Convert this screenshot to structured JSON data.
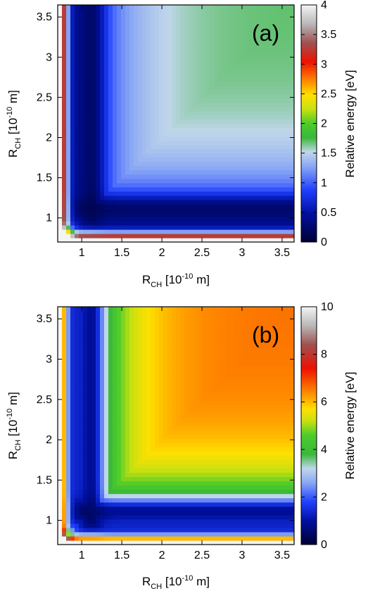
{
  "chart_data": [
    {
      "type": "heatmap",
      "panel_label": "(a)",
      "xlabel": {
        "main": "R",
        "sub": "CH",
        "rest": " [10",
        "sup": "-10",
        "end": " m]"
      },
      "ylabel": {
        "main": "R",
        "sub": "CH",
        "rest": " [10",
        "sup": "-10",
        "end": " m]"
      },
      "xlim": [
        0.7,
        3.65
      ],
      "ylim": [
        0.7,
        3.65
      ],
      "xticks": [
        1,
        1.5,
        2,
        2.5,
        3,
        3.5
      ],
      "xtick_labels": [
        "1",
        "1.5",
        "2",
        "2.5",
        "3",
        "3.5"
      ],
      "yticks": [
        1,
        1.5,
        2,
        2.5,
        3,
        3.5
      ],
      "ytick_labels": [
        "1",
        "1.5",
        "2",
        "2.5",
        "3",
        "3.5"
      ],
      "colorbar": {
        "label": "Relative energy [eV]",
        "range": [
          0,
          4
        ],
        "ticks": [
          0,
          0.5,
          1,
          1.5,
          2,
          2.5,
          3,
          3.5,
          4
        ],
        "tick_labels": [
          "0",
          "0.5",
          "1",
          "1.5",
          "2",
          "2.5",
          "3",
          "3.5",
          "4"
        ]
      },
      "colormap": [
        {
          "f": 0.0,
          "color": "#000033"
        },
        {
          "f": 0.12,
          "color": "#0010a0"
        },
        {
          "f": 0.22,
          "color": "#2040ff"
        },
        {
          "f": 0.32,
          "color": "#8aa8f4"
        },
        {
          "f": 0.38,
          "color": "#c0d6ea"
        },
        {
          "f": 0.44,
          "color": "#3ab83a"
        },
        {
          "f": 0.5,
          "color": "#4ccc2a"
        },
        {
          "f": 0.56,
          "color": "#c8e010"
        },
        {
          "f": 0.62,
          "color": "#ffe000"
        },
        {
          "f": 0.68,
          "color": "#ff8800"
        },
        {
          "f": 0.76,
          "color": "#ee1100"
        },
        {
          "f": 0.84,
          "color": "#a05050"
        },
        {
          "f": 0.92,
          "color": "#b8b8b8"
        },
        {
          "f": 1.0,
          "color": "#f4f4f4"
        }
      ],
      "surface": {
        "wall_scale": 0.055,
        "wall_center": 0.76,
        "plateau_value": 1.7,
        "plateau_rise": 0.55,
        "min_value": 0.05,
        "min_well_centre": [
          1.12,
          1.12
        ],
        "valley_value": 0.1
      }
    },
    {
      "type": "heatmap",
      "panel_label": "(b)",
      "xlabel": {
        "main": "R",
        "sub": "CH",
        "rest": " [10",
        "sup": "-10",
        "end": " m]"
      },
      "ylabel": {
        "main": "R",
        "sub": "CH",
        "rest": " [10",
        "sup": "-10",
        "end": " m]"
      },
      "xlim": [
        0.7,
        3.65
      ],
      "ylim": [
        0.7,
        3.65
      ],
      "xticks": [
        1,
        1.5,
        2,
        2.5,
        3,
        3.5
      ],
      "xtick_labels": [
        "1",
        "1.5",
        "2",
        "2.5",
        "3",
        "3.5"
      ],
      "yticks": [
        1,
        1.5,
        2,
        2.5,
        3,
        3.5
      ],
      "ytick_labels": [
        "1",
        "1.5",
        "2",
        "2.5",
        "3",
        "3.5"
      ],
      "colorbar": {
        "label": "Relative energy [eV]",
        "range": [
          0,
          10
        ],
        "ticks": [
          0,
          2,
          4,
          6,
          8,
          10
        ],
        "tick_labels": [
          "0",
          "2",
          "4",
          "6",
          "8",
          "10"
        ]
      },
      "colormap": [
        {
          "f": 0.0,
          "color": "#000033"
        },
        {
          "f": 0.1,
          "color": "#0010a0"
        },
        {
          "f": 0.18,
          "color": "#2040ff"
        },
        {
          "f": 0.26,
          "color": "#8aa8f4"
        },
        {
          "f": 0.32,
          "color": "#c0d6ea"
        },
        {
          "f": 0.38,
          "color": "#3ab83a"
        },
        {
          "f": 0.46,
          "color": "#4ccc2a"
        },
        {
          "f": 0.52,
          "color": "#c8e010"
        },
        {
          "f": 0.57,
          "color": "#ffe000"
        },
        {
          "f": 0.64,
          "color": "#ff8800"
        },
        {
          "f": 0.74,
          "color": "#ee1100"
        },
        {
          "f": 0.84,
          "color": "#a05050"
        },
        {
          "f": 0.92,
          "color": "#b8b8b8"
        },
        {
          "f": 1.0,
          "color": "#f4f4f4"
        }
      ],
      "surface": {
        "wall_scale": 0.06,
        "wall_center": 0.74,
        "plateau_value": 6.6,
        "plateau_rise": 0.5,
        "min_value": 0.1,
        "min_well_centre": [
          1.1,
          1.1
        ],
        "valley_value": 0.3
      }
    }
  ]
}
